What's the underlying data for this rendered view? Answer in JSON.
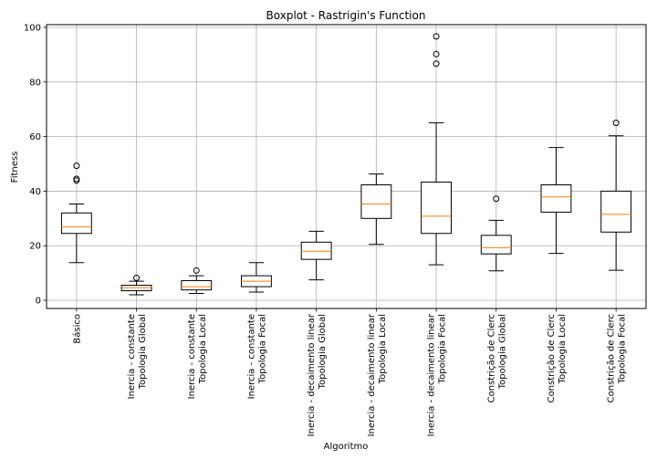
{
  "chart_data": {
    "type": "boxplot",
    "title": "Boxplot - Rastrigin's Function",
    "xlabel": "Algoritmo",
    "ylabel": "Fitness",
    "ylim": [
      -3,
      101
    ],
    "yticks": [
      0,
      20,
      40,
      60,
      80,
      100
    ],
    "grid": true,
    "colors": {
      "box": "#000000",
      "median": "#ff7f0e",
      "grid": "#b0b0b0"
    },
    "categories": [
      [
        "Básico"
      ],
      [
        "Inercia - constante",
        "Topologia Global"
      ],
      [
        "Inercia - constante",
        "Topologia Local"
      ],
      [
        "Inercia - constante",
        "Topologia Focal"
      ],
      [
        "Inercia - decaimento linear",
        "Topologia Global"
      ],
      [
        "Inercia - decaimento linear",
        "Topologia Local"
      ],
      [
        "Inercia - decaimento linear",
        "Topologia Focal"
      ],
      [
        "Constrição de Clerc",
        "Topologia Global"
      ],
      [
        "Constrição de Clerc",
        "Topologia Local"
      ],
      [
        "Constrição de Clerc",
        "Topologia Focal"
      ]
    ],
    "boxes": [
      {
        "whislo": 13.8,
        "q1": 24.5,
        "med": 26.9,
        "q3": 32.0,
        "whishi": 35.3,
        "fliers": [
          43.9,
          44.5,
          49.3
        ]
      },
      {
        "whislo": 2.0,
        "q1": 3.5,
        "med": 4.6,
        "q3": 5.5,
        "whishi": 7.0,
        "fliers": [
          8.2
        ]
      },
      {
        "whislo": 2.5,
        "q1": 3.8,
        "med": 5.0,
        "q3": 7.2,
        "whishi": 9.0,
        "fliers": [
          10.9
        ]
      },
      {
        "whislo": 3.0,
        "q1": 5.0,
        "med": 7.0,
        "q3": 9.0,
        "whishi": 13.8,
        "fliers": []
      },
      {
        "whislo": 7.5,
        "q1": 15.0,
        "med": 18.0,
        "q3": 21.3,
        "whishi": 25.3,
        "fliers": []
      },
      {
        "whislo": 20.5,
        "q1": 30.0,
        "med": 35.3,
        "q3": 42.3,
        "whishi": 46.3,
        "fliers": []
      },
      {
        "whislo": 13.0,
        "q1": 24.5,
        "med": 30.8,
        "q3": 43.3,
        "whishi": 65.0,
        "fliers": [
          86.7,
          90.2,
          96.7
        ]
      },
      {
        "whislo": 10.8,
        "q1": 17.0,
        "med": 19.3,
        "q3": 23.8,
        "whishi": 29.3,
        "fliers": [
          37.2
        ]
      },
      {
        "whislo": 17.2,
        "q1": 32.3,
        "med": 37.9,
        "q3": 42.3,
        "whishi": 56.0,
        "fliers": []
      },
      {
        "whislo": 11.0,
        "q1": 25.0,
        "med": 31.5,
        "q3": 40.0,
        "whishi": 60.3,
        "fliers": [
          65.0
        ]
      }
    ]
  }
}
